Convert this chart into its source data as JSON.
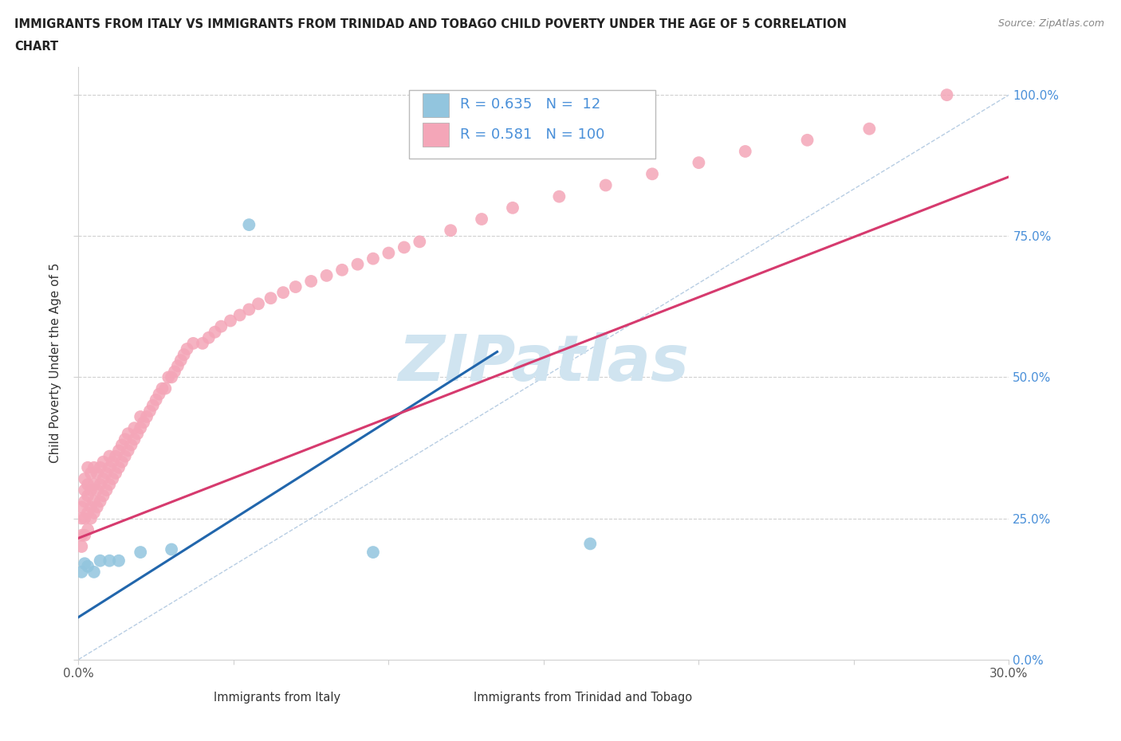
{
  "title_line1": "IMMIGRANTS FROM ITALY VS IMMIGRANTS FROM TRINIDAD AND TOBAGO CHILD POVERTY UNDER THE AGE OF 5 CORRELATION",
  "title_line2": "CHART",
  "source_text": "Source: ZipAtlas.com",
  "ylabel": "Child Poverty Under the Age of 5",
  "xlim": [
    0.0,
    0.3
  ],
  "ylim": [
    0.0,
    1.05
  ],
  "italy_color": "#92c5de",
  "italy_edge_color": "#6baed6",
  "tt_color": "#f4a6b8",
  "tt_edge_color": "#e87fa0",
  "italy_line_color": "#2166ac",
  "tt_line_color": "#d63a6e",
  "ref_line_color": "#b0c8e0",
  "italy_R": 0.635,
  "italy_N": 12,
  "tt_R": 0.581,
  "tt_N": 100,
  "watermark": "ZIPatlas",
  "watermark_color": "#d0e4f0",
  "background_color": "#ffffff",
  "grid_color": "#d0d0d0",
  "title_color": "#222222",
  "right_tick_color": "#4a90d9",
  "italy_x": [
    0.001,
    0.002,
    0.003,
    0.005,
    0.007,
    0.01,
    0.013,
    0.02,
    0.03,
    0.055,
    0.095,
    0.165
  ],
  "italy_y": [
    0.155,
    0.17,
    0.165,
    0.155,
    0.175,
    0.175,
    0.175,
    0.19,
    0.195,
    0.77,
    0.19,
    0.205
  ],
  "tt_x": [
    0.001,
    0.001,
    0.001,
    0.001,
    0.002,
    0.002,
    0.002,
    0.002,
    0.002,
    0.003,
    0.003,
    0.003,
    0.003,
    0.003,
    0.004,
    0.004,
    0.004,
    0.004,
    0.005,
    0.005,
    0.005,
    0.005,
    0.006,
    0.006,
    0.006,
    0.007,
    0.007,
    0.007,
    0.008,
    0.008,
    0.008,
    0.009,
    0.009,
    0.01,
    0.01,
    0.01,
    0.011,
    0.011,
    0.012,
    0.012,
    0.013,
    0.013,
    0.014,
    0.014,
    0.015,
    0.015,
    0.016,
    0.016,
    0.017,
    0.018,
    0.018,
    0.019,
    0.02,
    0.02,
    0.021,
    0.022,
    0.023,
    0.024,
    0.025,
    0.026,
    0.027,
    0.028,
    0.029,
    0.03,
    0.031,
    0.032,
    0.033,
    0.034,
    0.035,
    0.037,
    0.04,
    0.042,
    0.044,
    0.046,
    0.049,
    0.052,
    0.055,
    0.058,
    0.062,
    0.066,
    0.07,
    0.075,
    0.08,
    0.085,
    0.09,
    0.095,
    0.1,
    0.105,
    0.11,
    0.12,
    0.13,
    0.14,
    0.155,
    0.17,
    0.185,
    0.2,
    0.215,
    0.235,
    0.255,
    0.28
  ],
  "tt_y": [
    0.2,
    0.22,
    0.25,
    0.27,
    0.22,
    0.25,
    0.28,
    0.3,
    0.32,
    0.23,
    0.26,
    0.29,
    0.31,
    0.34,
    0.25,
    0.27,
    0.3,
    0.33,
    0.26,
    0.28,
    0.31,
    0.34,
    0.27,
    0.3,
    0.33,
    0.28,
    0.31,
    0.34,
    0.29,
    0.32,
    0.35,
    0.3,
    0.33,
    0.31,
    0.34,
    0.36,
    0.32,
    0.35,
    0.33,
    0.36,
    0.34,
    0.37,
    0.35,
    0.38,
    0.36,
    0.39,
    0.37,
    0.4,
    0.38,
    0.39,
    0.41,
    0.4,
    0.41,
    0.43,
    0.42,
    0.43,
    0.44,
    0.45,
    0.46,
    0.47,
    0.48,
    0.48,
    0.5,
    0.5,
    0.51,
    0.52,
    0.53,
    0.54,
    0.55,
    0.56,
    0.56,
    0.57,
    0.58,
    0.59,
    0.6,
    0.61,
    0.62,
    0.63,
    0.64,
    0.65,
    0.66,
    0.67,
    0.68,
    0.69,
    0.7,
    0.71,
    0.72,
    0.73,
    0.74,
    0.76,
    0.78,
    0.8,
    0.82,
    0.84,
    0.86,
    0.88,
    0.9,
    0.92,
    0.94,
    1.0
  ],
  "italy_line_x": [
    0.0,
    0.135
  ],
  "italy_line_y": [
    0.075,
    0.545
  ],
  "tt_line_x": [
    0.0,
    0.3
  ],
  "tt_line_y": [
    0.215,
    0.855
  ]
}
